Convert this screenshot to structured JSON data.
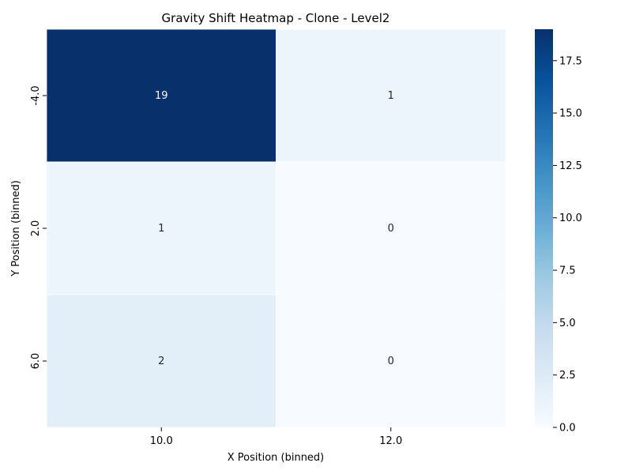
{
  "chart_data": {
    "type": "heatmap",
    "title": "Gravity Shift Heatmap - Clone - Level2",
    "xlabel": "X Position (binned)",
    "ylabel": "Y Position (binned)",
    "x_categories": [
      "10.0",
      "12.0"
    ],
    "y_categories": [
      "-4.0",
      "2.0",
      "6.0"
    ],
    "values": [
      [
        19,
        1
      ],
      [
        1,
        0
      ],
      [
        2,
        0
      ]
    ],
    "annotations": [
      [
        "19",
        "1"
      ],
      [
        "1",
        "0"
      ],
      [
        "2",
        "0"
      ]
    ],
    "colorbar": {
      "range": [
        0,
        19
      ],
      "ticks": [
        0,
        2.5,
        5,
        7.5,
        10,
        12.5,
        15,
        17.5
      ],
      "tick_labels": [
        "0.0",
        "2.5",
        "5.0",
        "7.5",
        "10.0",
        "12.5",
        "15.0",
        "17.5"
      ]
    },
    "colormap": "Blues",
    "colormap_stops": [
      "#f7fbff",
      "#deebf7",
      "#c6dbef",
      "#9ecae1",
      "#6baed6",
      "#4292c6",
      "#2171b5",
      "#08519c",
      "#08306b"
    ],
    "annotation_colors": {
      "light": "#ffffff",
      "dark": "#262626"
    },
    "grid": false
  }
}
